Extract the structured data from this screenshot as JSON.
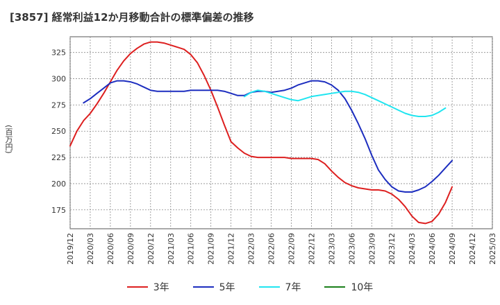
{
  "chart_data": {
    "type": "line",
    "title": "[3857]  経常利益12か月移動合計の標準偏差の推移",
    "ylabel": "(百万円)",
    "xlabel": "",
    "ylim": [
      157,
      340
    ],
    "xlim": [
      "2019-12",
      "2025-03"
    ],
    "y_ticks": [
      175,
      200,
      225,
      250,
      275,
      300,
      325
    ],
    "x_ticks": [
      "2019/12",
      "2020/03",
      "2020/06",
      "2020/09",
      "2020/12",
      "2021/03",
      "2021/06",
      "2021/09",
      "2021/12",
      "2022/03",
      "2022/06",
      "2022/09",
      "2022/12",
      "2023/03",
      "2023/06",
      "2023/09",
      "2023/12",
      "2024/03",
      "2024/06",
      "2024/09",
      "2024/12",
      "2025/03"
    ],
    "grid": true,
    "legend_position": "bottom",
    "series": [
      {
        "name": "3年",
        "color": "#dd1f1f",
        "start": "2019-12",
        "values": [
          236,
          250,
          260,
          267,
          276,
          286,
          297,
          308,
          317,
          324,
          329,
          333,
          335,
          335,
          334,
          332,
          330,
          328,
          323,
          315,
          303,
          289,
          273,
          256,
          240,
          234,
          229,
          226,
          225,
          225,
          225,
          225,
          225,
          224,
          224,
          224,
          224,
          223,
          219,
          212,
          206,
          201,
          198,
          196,
          195,
          194,
          194,
          193,
          190,
          185,
          178,
          169,
          163,
          162,
          164,
          171,
          182,
          197
        ]
      },
      {
        "name": "5年",
        "color": "#1c2dbf",
        "start": "2020-02",
        "values": [
          277,
          281,
          286,
          291,
          296,
          298,
          298,
          297,
          295,
          292,
          289,
          288,
          288,
          288,
          288,
          288,
          289,
          289,
          289,
          289,
          289,
          288,
          286,
          284,
          284,
          287,
          288,
          288,
          287,
          288,
          289,
          291,
          294,
          296,
          298,
          298,
          297,
          294,
          289,
          281,
          270,
          257,
          243,
          227,
          213,
          204,
          197,
          193,
          192,
          192,
          194,
          197,
          202,
          208,
          215,
          222
        ]
      },
      {
        "name": "7年",
        "color": "#20e5f0",
        "start": "2022-02",
        "values": [
          283,
          287,
          289,
          288,
          286,
          284,
          282,
          280,
          279,
          281,
          283,
          284,
          285,
          286,
          287,
          288,
          288,
          287,
          285,
          282,
          279,
          276,
          273,
          270,
          267,
          265,
          264,
          264,
          265,
          268,
          272
        ]
      },
      {
        "name": "10年",
        "color": "#1a7f1a",
        "start": "2025-03",
        "values": []
      }
    ]
  }
}
